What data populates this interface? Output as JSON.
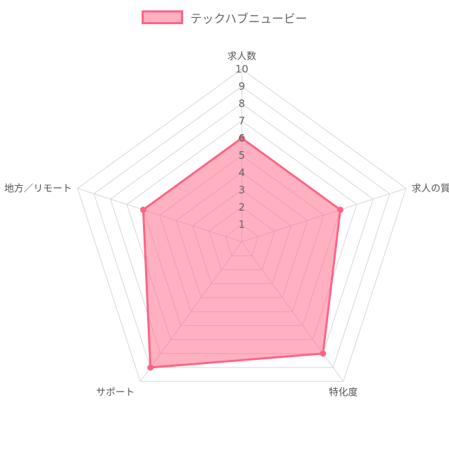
{
  "legend": {
    "label": "テックハブニュービー"
  },
  "colors": {
    "fill": "rgba(255,99,132,0.5)",
    "stroke": "#ff6384",
    "grid": "#d6d6d6"
  },
  "chart_data": {
    "type": "radar",
    "axes": [
      "求人数",
      "求人の質",
      "特化度",
      "サポート",
      "地方／リモート"
    ],
    "rmin": 0,
    "rmax": 10,
    "ticks": [
      "1",
      "2",
      "3",
      "4",
      "5",
      "6",
      "7",
      "8",
      "9",
      "10"
    ],
    "series": [
      {
        "name": "テックハブニュービー",
        "values": [
          6,
          6,
          8,
          9,
          6
        ]
      }
    ],
    "grid": true,
    "legend_position": "top"
  }
}
